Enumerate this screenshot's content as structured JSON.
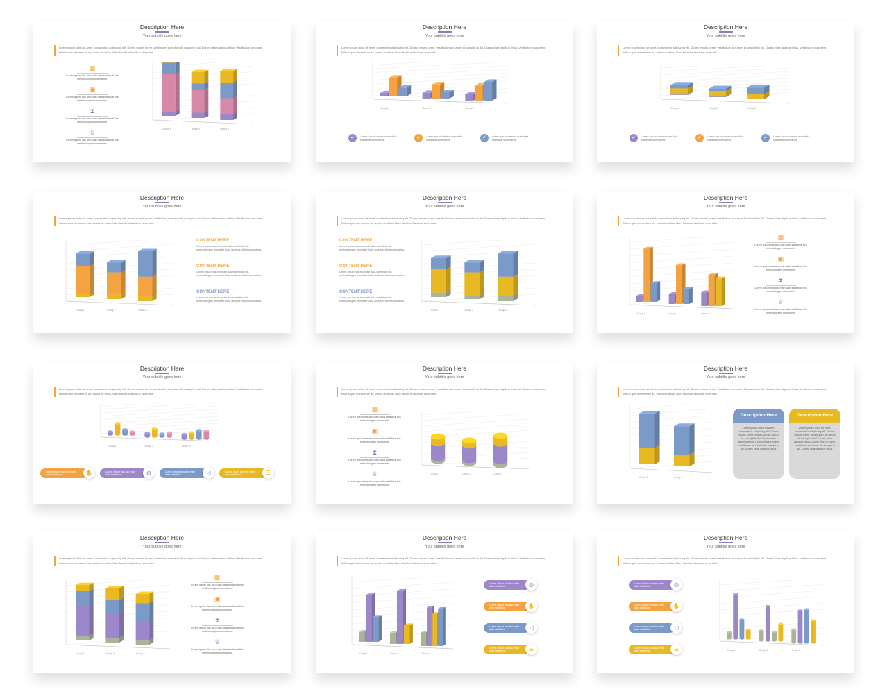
{
  "slide_title": "Description Here",
  "slide_subtitle": "Your subtitle goes here",
  "slide_paragraph": "Lorem ipsum dolor sit amet, consectetur adipiscing elit. Donec mauris lorem, vestibulum ac rutrum id, suscipit in dui. Donec vitae dapibus tellus. Vestibulum nunc sem, finibus quis elementum ac, varius ac tellus. Nam faucibus faucibus venenatis.",
  "icon_item_text": "Lorem Ipsum has two main data statistical this methodologies summaries.",
  "check_item_text": "Lorem Ipsum has two main data statistical summaries.",
  "content_title": "CONTENT HERE",
  "content_text": "Lorem Ipsum has two main data statistical this methodologies important Data analysis which summaries.",
  "pill_text": "Lorem Ipsum has two main data statistical",
  "card_title": "Description Here",
  "card_text": "Lorem ipsum dolor sit amet, connectetur adipiscing elit. Donec mauris lorem, vestibulum ac rutrum id, suscipit in dui. Donec vitae dapibus tellus. Donec mauris lorem, vestibulum ac rutrum id, suscipit in dui. Donec vitae dapibus tellus.",
  "group_labels": [
    "Group 1",
    "Group 2",
    "Group 3"
  ],
  "colors": {
    "purple": "#9b87c9",
    "orange": "#f4a340",
    "blue": "#7b9ac8",
    "yellow": "#e8b923",
    "pink": "#d889a8",
    "green": "#a8b59a",
    "accent": "#8e7cc3"
  },
  "icons": [
    "calendar-icon",
    "briefcase-icon",
    "hourglass-icon",
    "trophy-icon"
  ],
  "pill_icons": [
    "hands-icon",
    "globe-icon",
    "megaphone-icon",
    "list-icon"
  ]
}
